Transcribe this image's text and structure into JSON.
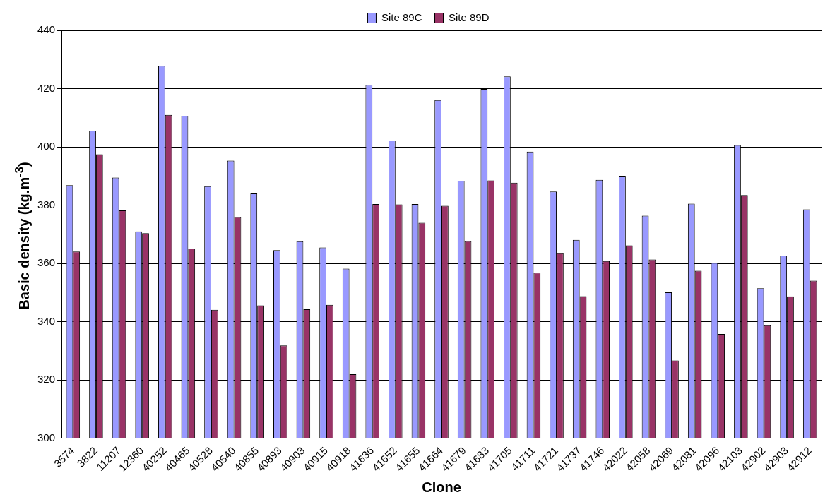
{
  "chart_data": {
    "type": "bar",
    "xlabel": "Clone",
    "ylabel": "Basic density (kg.m$^{-3}$)",
    "categories": [
      "3574",
      "3822",
      "11207",
      "12360",
      "40252",
      "40465",
      "40528",
      "40540",
      "40855",
      "40893",
      "40903",
      "40915",
      "40918",
      "41636",
      "41652",
      "41655",
      "41664",
      "41679",
      "41683",
      "41705",
      "41711",
      "41721",
      "41737",
      "41746",
      "42022",
      "42058",
      "42069",
      "42081",
      "42096",
      "42103",
      "42902",
      "42903",
      "42912"
    ],
    "series": [
      {
        "name": "Site 89C",
        "color": "#9999ff",
        "values": [
          386.9,
          405.6,
          389.5,
          371.0,
          427.8,
          410.7,
          386.5,
          395.3,
          384.0,
          364.6,
          367.6,
          365.5,
          358.2,
          421.3,
          402.2,
          380.4,
          416.1,
          388.4,
          419.9,
          424.2,
          398.4,
          384.7,
          368.1,
          388.7,
          390.1,
          376.4,
          350.1,
          380.5,
          360.2,
          400.6,
          351.5,
          362.7,
          378.6
        ]
      },
      {
        "name": "Site 89D",
        "color": "#993366",
        "values": [
          364.1,
          397.5,
          378.2,
          370.4,
          411.0,
          365.1,
          344.1,
          375.9,
          345.6,
          331.9,
          344.3,
          345.8,
          322.0,
          380.4,
          380.3,
          374.0,
          379.8,
          367.7,
          388.5,
          387.7,
          356.8,
          363.5,
          348.8,
          360.8,
          366.2,
          361.4,
          326.7,
          357.5,
          335.8,
          383.5,
          338.8,
          348.7,
          354.1
        ]
      }
    ],
    "ylim": [
      300,
      440
    ],
    "yticks": [
      300,
      320,
      340,
      360,
      380,
      400,
      420,
      440
    ],
    "grid": "y",
    "legend": "top"
  }
}
